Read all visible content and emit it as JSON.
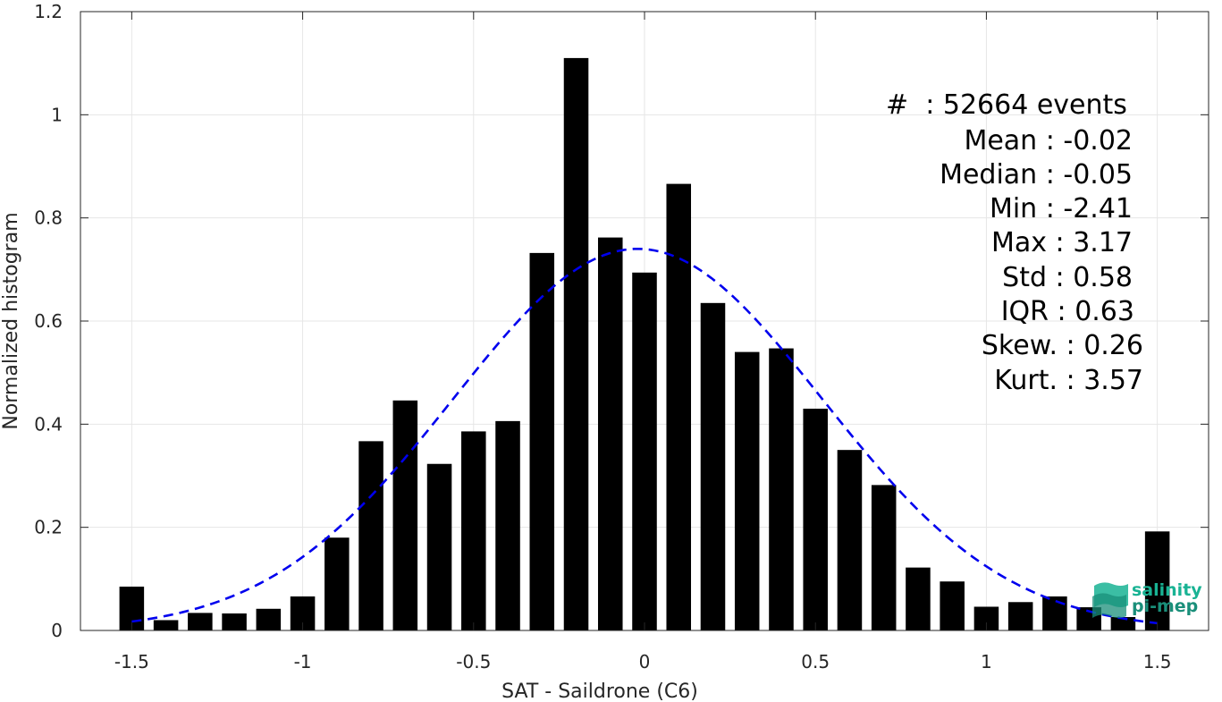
{
  "chart_data": {
    "type": "bar",
    "title": "",
    "xlabel": "SAT - Saildrone (C6)",
    "ylabel": "Normalized histogram",
    "xlim": [
      -1.65,
      1.65
    ],
    "ylim": [
      0,
      1.2
    ],
    "xticks": [
      "-1.5",
      "-1",
      "-0.5",
      "0",
      "0.5",
      "1",
      "1.5"
    ],
    "xtick_values": [
      -1.5,
      -1,
      -0.5,
      0,
      0.5,
      1,
      1.5
    ],
    "yticks": [
      "0",
      "0.2",
      "0.4",
      "0.6",
      "0.8",
      "1",
      "1.2"
    ],
    "ytick_values": [
      0,
      0.2,
      0.4,
      0.6,
      0.8,
      1.0,
      1.2
    ],
    "grid": true,
    "bin_width": 0.1,
    "bins": [
      {
        "x": -1.5,
        "y": 0.085
      },
      {
        "x": -1.4,
        "y": 0.02
      },
      {
        "x": -1.3,
        "y": 0.034
      },
      {
        "x": -1.2,
        "y": 0.033
      },
      {
        "x": -1.1,
        "y": 0.042
      },
      {
        "x": -1.0,
        "y": 0.066
      },
      {
        "x": -0.9,
        "y": 0.18
      },
      {
        "x": -0.8,
        "y": 0.367
      },
      {
        "x": -0.7,
        "y": 0.446
      },
      {
        "x": -0.6,
        "y": 0.323
      },
      {
        "x": -0.5,
        "y": 0.386
      },
      {
        "x": -0.4,
        "y": 0.406
      },
      {
        "x": -0.3,
        "y": 0.732
      },
      {
        "x": -0.2,
        "y": 1.11
      },
      {
        "x": -0.1,
        "y": 0.762
      },
      {
        "x": 0.0,
        "y": 0.694
      },
      {
        "x": 0.1,
        "y": 0.866
      },
      {
        "x": 0.2,
        "y": 0.635
      },
      {
        "x": 0.3,
        "y": 0.54
      },
      {
        "x": 0.4,
        "y": 0.547
      },
      {
        "x": 0.5,
        "y": 0.43
      },
      {
        "x": 0.6,
        "y": 0.35
      },
      {
        "x": 0.7,
        "y": 0.282
      },
      {
        "x": 0.8,
        "y": 0.122
      },
      {
        "x": 0.9,
        "y": 0.095
      },
      {
        "x": 1.0,
        "y": 0.046
      },
      {
        "x": 1.1,
        "y": 0.055
      },
      {
        "x": 1.2,
        "y": 0.066
      },
      {
        "x": 1.3,
        "y": 0.045
      },
      {
        "x": 1.4,
        "y": 0.026
      },
      {
        "x": 1.5,
        "y": 0.192
      }
    ],
    "fit_curve": {
      "type": "gaussian",
      "style": "dashed",
      "color": "#0000ee",
      "mean": -0.02,
      "std": 0.54,
      "peak": 0.74,
      "x_range": [
        -1.5,
        1.5
      ]
    },
    "bar_color": "#000000",
    "grid_color": "#e6e6e6",
    "axis_color": "#262626"
  },
  "stats": {
    "count": "#  : 52664 events",
    "lines": [
      "Mean : -0.02",
      "Median : -0.05",
      "Min : -2.41",
      "Max : 3.17",
      "Std : 0.58",
      "IQR : 0.63",
      "Skew. : 0.26",
      "Kurt. : 3.57"
    ]
  },
  "logo": {
    "line1": "salinity",
    "line2": "pi-mep",
    "color1": "#19b394",
    "color2": "#1a8f7a"
  }
}
